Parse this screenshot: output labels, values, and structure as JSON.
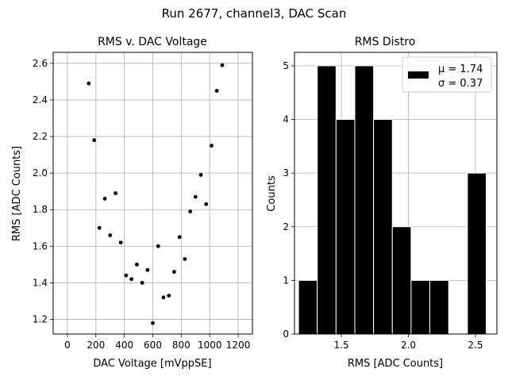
{
  "figure": {
    "suptitle": "Run 2677, channel3, DAC Scan"
  },
  "chart_data": [
    {
      "type": "scatter",
      "title": "RMS v. DAC Voltage",
      "xlabel": "DAC Voltage [mVppSE]",
      "ylabel": "RMS [ADC Counts]",
      "xlim": [
        -100,
        1300
      ],
      "ylim": [
        1.12,
        2.66
      ],
      "xticks": [
        0,
        200,
        400,
        600,
        800,
        1000,
        1200
      ],
      "yticks": [
        1.2,
        1.4,
        1.6,
        1.8,
        2.0,
        2.2,
        2.4,
        2.6
      ],
      "xtick_labels": [
        "0",
        "200",
        "400",
        "600",
        "800",
        "1000",
        "1200"
      ],
      "ytick_labels": [
        "1.2",
        "1.4",
        "1.6",
        "1.8",
        "2.0",
        "2.2",
        "2.4",
        "2.6"
      ],
      "grid": true,
      "marker_color": "#000000",
      "points": [
        {
          "x": 150,
          "y": 2.49
        },
        {
          "x": 188,
          "y": 2.18
        },
        {
          "x": 225,
          "y": 1.7
        },
        {
          "x": 263,
          "y": 1.86
        },
        {
          "x": 300,
          "y": 1.66
        },
        {
          "x": 338,
          "y": 1.89
        },
        {
          "x": 375,
          "y": 1.62
        },
        {
          "x": 413,
          "y": 1.44
        },
        {
          "x": 450,
          "y": 1.42
        },
        {
          "x": 488,
          "y": 1.5
        },
        {
          "x": 525,
          "y": 1.4
        },
        {
          "x": 563,
          "y": 1.47
        },
        {
          "x": 600,
          "y": 1.18
        },
        {
          "x": 638,
          "y": 1.6
        },
        {
          "x": 675,
          "y": 1.32
        },
        {
          "x": 713,
          "y": 1.33
        },
        {
          "x": 750,
          "y": 1.46
        },
        {
          "x": 788,
          "y": 1.65
        },
        {
          "x": 825,
          "y": 1.53
        },
        {
          "x": 863,
          "y": 1.79
        },
        {
          "x": 900,
          "y": 1.87
        },
        {
          "x": 938,
          "y": 1.99
        },
        {
          "x": 975,
          "y": 1.83
        },
        {
          "x": 1013,
          "y": 2.15
        },
        {
          "x": 1050,
          "y": 2.45
        },
        {
          "x": 1088,
          "y": 2.59
        }
      ]
    },
    {
      "type": "bar",
      "title": "RMS Distro",
      "xlabel": "RMS [ADC Counts]",
      "ylabel": "Counts",
      "xlim": [
        1.15,
        2.66
      ],
      "ylim": [
        0,
        5.25
      ],
      "xticks": [
        1.5,
        2.0,
        2.5
      ],
      "yticks": [
        0,
        1,
        2,
        3,
        4,
        5
      ],
      "xtick_labels": [
        "1.5",
        "2.0",
        "2.5"
      ],
      "ytick_labels": [
        "0",
        "1",
        "2",
        "3",
        "4",
        "5"
      ],
      "grid": true,
      "bar_color": "#000000",
      "edge_color": "#ffffff",
      "bins": [
        {
          "start": 1.18,
          "end": 1.32,
          "count": 1
        },
        {
          "start": 1.32,
          "end": 1.46,
          "count": 5
        },
        {
          "start": 1.46,
          "end": 1.6,
          "count": 4
        },
        {
          "start": 1.6,
          "end": 1.74,
          "count": 5
        },
        {
          "start": 1.74,
          "end": 1.88,
          "count": 4
        },
        {
          "start": 1.88,
          "end": 2.02,
          "count": 2
        },
        {
          "start": 2.02,
          "end": 2.16,
          "count": 1
        },
        {
          "start": 2.16,
          "end": 2.3,
          "count": 1
        },
        {
          "start": 2.3,
          "end": 2.44,
          "count": 0
        },
        {
          "start": 2.44,
          "end": 2.58,
          "count": 3
        }
      ],
      "legend": {
        "placement": "upper right",
        "line1": "μ = 1.74",
        "line2": "σ = 0.37"
      }
    }
  ]
}
